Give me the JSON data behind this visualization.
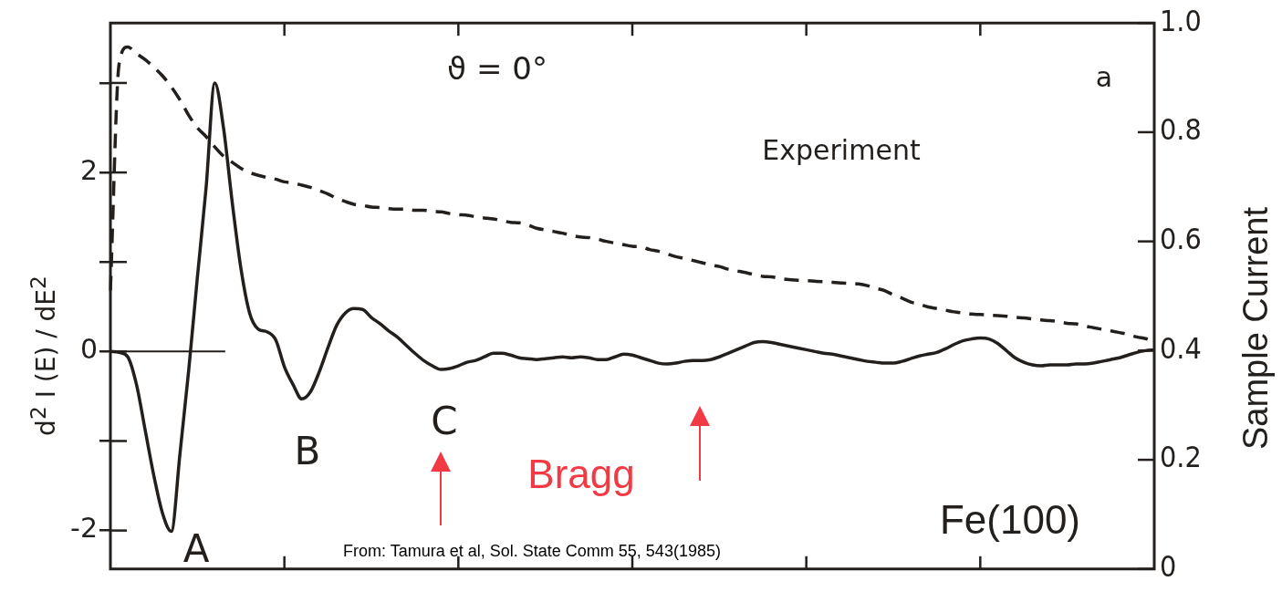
{
  "chart_data": {
    "type": "line",
    "ylabel": "d$^{2}$ I (E) / dE$^{2}$",
    "y2label": "Sample Current",
    "categories": [
      null,
      null,
      null,
      null,
      null,
      null,
      null,
      null,
      null,
      null,
      null,
      null,
      null,
      null,
      null,
      null,
      null,
      null,
      null,
      null,
      null,
      null,
      null,
      null,
      null,
      null,
      null,
      null,
      null,
      null,
      null,
      null,
      null,
      null,
      null,
      null,
      null,
      null,
      null,
      null,
      null,
      null,
      null,
      null,
      null,
      null,
      null,
      null,
      null,
      null,
      null,
      null,
      null,
      null,
      null,
      null,
      null,
      null,
      null,
      null,
      null,
      null,
      null,
      null,
      null,
      null,
      null,
      null,
      null,
      null,
      null,
      null,
      null,
      null,
      null,
      null,
      null,
      null,
      null,
      null,
      null,
      null,
      null,
      null,
      null,
      null,
      null,
      null,
      null,
      null,
      null,
      null,
      null,
      null,
      null,
      null,
      null,
      null,
      null,
      null,
      null,
      null,
      null,
      null,
      null,
      null,
      null,
      null,
      null,
      null,
      null,
      null,
      null,
      null,
      null,
      null,
      null,
      null,
      null,
      null,
      null
    ],
    "series": [
      {
        "color": "#231f1c",
        "line_style": "solid",
        "values": [
          0,
          -0.01,
          -0.06,
          -0.37,
          -0.88,
          -1.39,
          -1.81,
          -2.01,
          -1.14,
          -0.21,
          0.83,
          1.83,
          3.0,
          2.5,
          1.67,
          0.93,
          0.43,
          0.25,
          0.22,
          0.13,
          -0.17,
          -0.37,
          -0.53,
          -0.45,
          -0.23,
          0.04,
          0.29,
          0.43,
          0.48,
          0.47,
          0.38,
          0.31,
          0.23,
          0.16,
          0.07,
          -0.02,
          -0.1,
          -0.16,
          -0.2,
          -0.19,
          -0.16,
          -0.12,
          -0.1,
          -0.06,
          -0.02,
          -0.02,
          -0.04,
          -0.07,
          -0.08,
          -0.09,
          -0.08,
          -0.07,
          -0.06,
          -0.07,
          -0.06,
          -0.07,
          -0.09,
          -0.09,
          -0.06,
          -0.03,
          -0.04,
          -0.07,
          -0.1,
          -0.13,
          -0.14,
          -0.13,
          -0.11,
          -0.1,
          -0.1,
          -0.09,
          -0.06,
          -0.02,
          0.02,
          0.06,
          0.1,
          0.11,
          0.1,
          0.08,
          0.06,
          0.04,
          0.02,
          0,
          -0.02,
          -0.03,
          -0.05,
          -0.07,
          -0.09,
          -0.11,
          -0.12,
          -0.13,
          -0.13,
          -0.11,
          -0.08,
          -0.05,
          -0.03,
          -0.01,
          0.03,
          0.08,
          0.12,
          0.14,
          0.15,
          0.14,
          0.09,
          0.01,
          -0.07,
          -0.12,
          -0.15,
          -0.16,
          -0.15,
          -0.15,
          -0.15,
          -0.14,
          -0.14,
          -0.13,
          -0.11,
          -0.09,
          -0.07,
          -0.04,
          -0.01,
          0.01,
          0.02
        ]
      },
      {
        "color": "#231f1c",
        "line_style": "dashed",
        "axis": "y2",
        "values": [
          0.51,
          0.925,
          0.956,
          0.944,
          0.933,
          0.919,
          0.903,
          0.883,
          0.859,
          0.831,
          0.808,
          0.792,
          0.773,
          0.756,
          0.745,
          0.734,
          0.726,
          0.721,
          0.717,
          0.714,
          0.709,
          0.707,
          0.703,
          0.699,
          0.693,
          0.687,
          0.679,
          0.673,
          0.668,
          0.666,
          0.663,
          0.662,
          0.66,
          0.659,
          0.659,
          0.657,
          0.657,
          0.655,
          0.654,
          0.651,
          0.649,
          0.648,
          0.645,
          0.643,
          0.641,
          0.638,
          0.635,
          0.634,
          0.63,
          0.624,
          0.621,
          0.618,
          0.615,
          0.611,
          0.608,
          0.607,
          0.604,
          0.6,
          0.597,
          0.594,
          0.591,
          0.59,
          0.585,
          0.582,
          0.577,
          0.572,
          0.569,
          0.565,
          0.561,
          0.557,
          0.554,
          0.549,
          0.546,
          0.543,
          0.539,
          0.536,
          0.535,
          0.532,
          0.53,
          0.529,
          0.528,
          0.527,
          0.526,
          0.525,
          0.524,
          0.523,
          0.522,
          0.519,
          0.514,
          0.51,
          0.502,
          0.496,
          0.489,
          0.485,
          0.48,
          0.477,
          0.474,
          0.471,
          0.469,
          0.467,
          0.466,
          0.465,
          0.464,
          0.463,
          0.461,
          0.46,
          0.458,
          0.456,
          0.455,
          0.453,
          0.45,
          0.449,
          0.445,
          0.442,
          0.439,
          0.436,
          0.433,
          0.43,
          0.425,
          0.422,
          0.417
        ]
      }
    ],
    "ylim": [
      -2.43,
      3.67
    ],
    "yticks": [
      {
        "value": 3,
        "label": null
      },
      2,
      {
        "value": 1,
        "label": null
      },
      0,
      {
        "value": -1,
        "label": null
      },
      -2
    ],
    "y2lim": [
      0,
      1
    ],
    "y2ticks": [
      {
        "value": 1,
        "label": "1.0"
      },
      {
        "value": 0.8,
        "label": "0.8"
      },
      {
        "value": 0.6,
        "label": "0.6"
      },
      {
        "value": 0.4,
        "label": "0.4"
      },
      {
        "value": 0.2,
        "label": "0.2"
      },
      0
    ],
    "ref_lines": [
      {
        "axis": "y",
        "value": 0,
        "color": "#231f1c"
      }
    ],
    "grid": false,
    "legend": false,
    "marker": "none",
    "annotations": [
      "ϑ = 0°",
      "a",
      "Experiment",
      "A",
      "B",
      "C",
      "Bragg",
      "Fe(100)",
      "From: Tamura et al, Sol. State Comm 55, 543(1985)"
    ]
  }
}
